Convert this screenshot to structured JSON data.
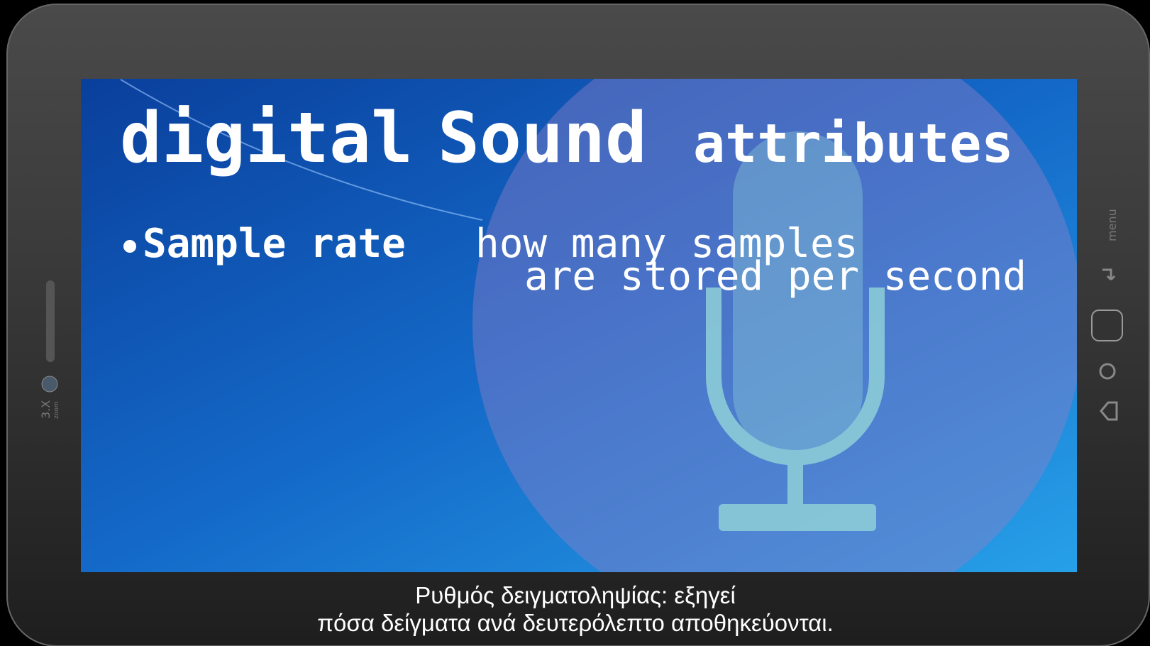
{
  "slide": {
    "title": [
      "digital",
      "Sound",
      "attributes"
    ],
    "bullet": {
      "term": "Sample rate",
      "definition": [
        "how many samples",
        "are stored per second"
      ]
    }
  },
  "device": {
    "side_label": "menu",
    "zoom_label": "3.X",
    "zoom_caption": "zoom"
  },
  "subtitles": [
    "Ρυθμός δειγματοληψίας: εξηγεί",
    "πόσα δείγματα ανά δευτερόλεπτο αποθηκεύονται."
  ]
}
